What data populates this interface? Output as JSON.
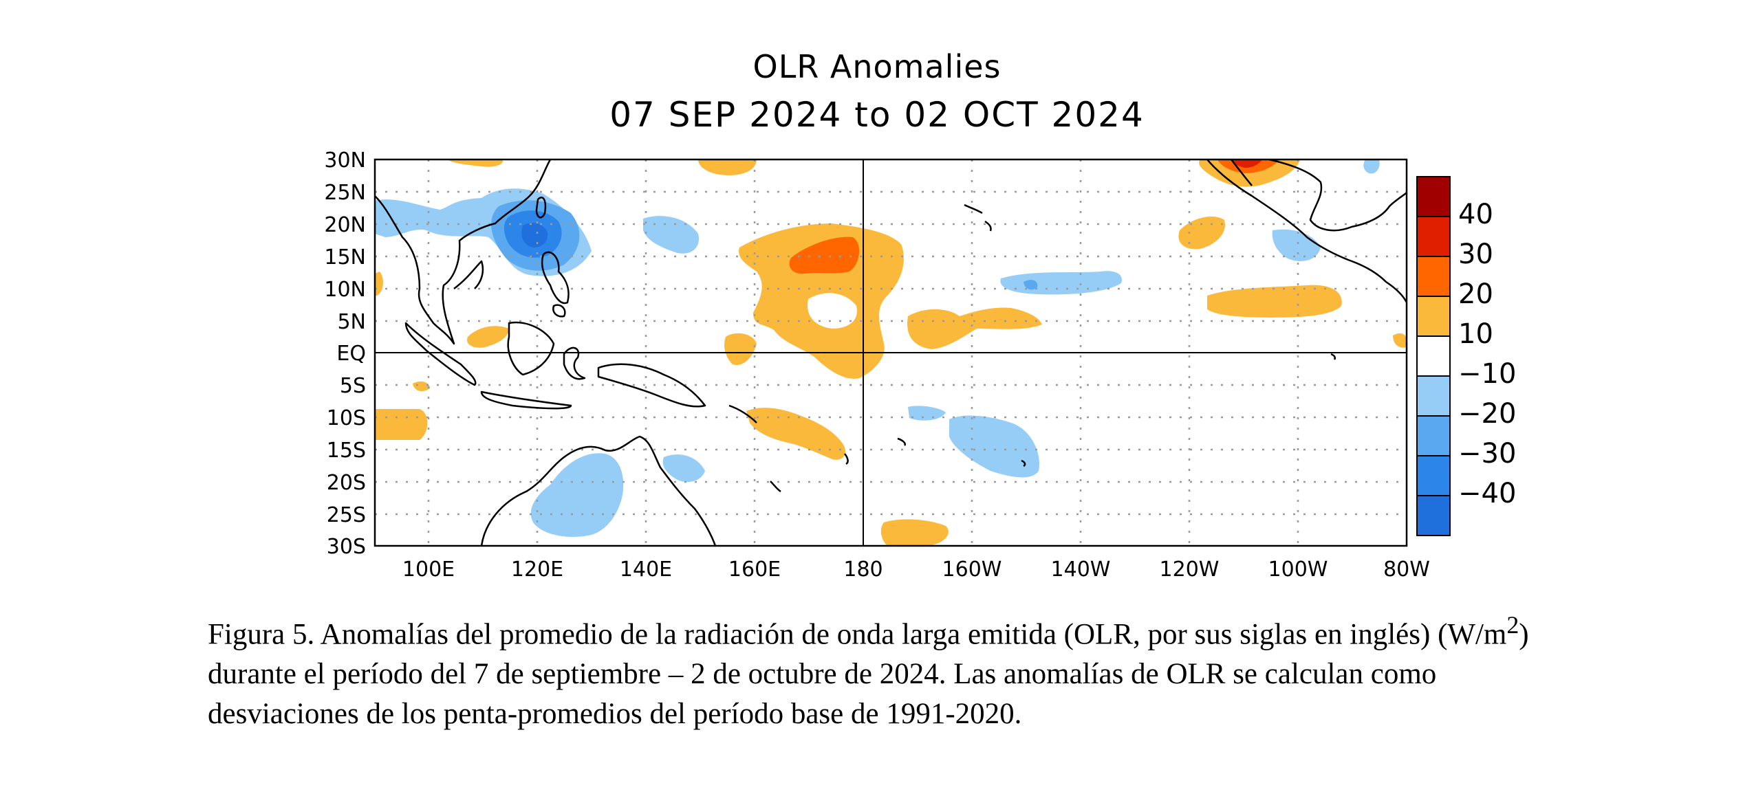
{
  "title": {
    "line1": "OLR Anomalies",
    "line2": "07 SEP 2024 to 02 OCT 2024"
  },
  "map": {
    "lat_labels": [
      "30N",
      "25N",
      "20N",
      "15N",
      "10N",
      "5N",
      "EQ",
      "5S",
      "10S",
      "15S",
      "20S",
      "25S",
      "30S"
    ],
    "lon_labels": [
      "100E",
      "120E",
      "140E",
      "160E",
      "180",
      "160W",
      "140W",
      "120W",
      "100W",
      "80W"
    ],
    "lon_range": [
      "90E",
      "80W"
    ],
    "lat_range": [
      "30S",
      "30N"
    ]
  },
  "colorbar": {
    "labels": [
      "40",
      "30",
      "20",
      "10",
      "−10",
      "−20",
      "−30",
      "−40"
    ],
    "colors": [
      "#a00000",
      "#e01e00",
      "#ff6600",
      "#fbb93c",
      "#ffffff",
      "#96cdf7",
      "#5aa8ef",
      "#2c86ea",
      "#1f6fdc"
    ]
  },
  "anomaly_colors": {
    "pos_light": "#fbb93c",
    "pos_mid": "#ff6600",
    "pos_strong": "#e01e00",
    "neg_light": "#96cdf7",
    "neg_mid": "#5aa8ef",
    "neg_strong": "#2c86ea",
    "neg_core": "#1f6fdc"
  },
  "caption": {
    "part1": "Figura 5. Anomalías del promedio de la radiación de onda larga emitida (OLR, por sus siglas en inglés) (W/m",
    "sup": "2",
    "part2": ") durante el período del 7 de septiembre – 2 de octubre de 2024.  Las anomalías de OLR se calculan como desviaciones de los penta-promedios del período base de 1991-2020."
  }
}
